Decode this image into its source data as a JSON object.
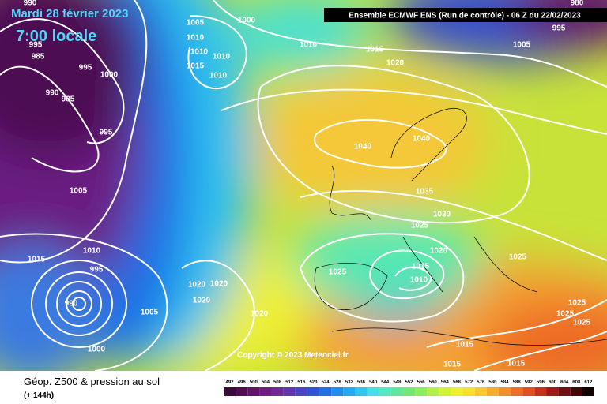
{
  "header": {
    "date": "Mardi 28 février 2023",
    "time": "7:00 locale",
    "run": "Ensemble ECMWF ENS  (Run de contrôle)  - 06 Z du 22/02/2023"
  },
  "copyright": "Copyright © 2023 Meteociel.fr",
  "footer": {
    "title": "Géop. Z500 & pression au sol",
    "lead": "(+ 144h)"
  },
  "colorbar": {
    "ticks": [
      492,
      496,
      500,
      504,
      508,
      512,
      516,
      520,
      524,
      528,
      532,
      536,
      540,
      544,
      548,
      552,
      556,
      560,
      564,
      568,
      572,
      576,
      580,
      584,
      588,
      592,
      596,
      600,
      604,
      608,
      612
    ],
    "colors": [
      "#3a0a3a",
      "#4d0f52",
      "#5e166a",
      "#6a1f82",
      "#6e2a9a",
      "#6236b0",
      "#4b44c4",
      "#2f55d6",
      "#1f70e6",
      "#1f8cf0",
      "#22aaf4",
      "#2fc6f2",
      "#45dde6",
      "#55e8c4",
      "#5ee89c",
      "#72e878",
      "#92ec5a",
      "#b4f048",
      "#d2f23a",
      "#ecf030",
      "#f8e030",
      "#fac832",
      "#f8ac2e",
      "#f4902a",
      "#ee7026",
      "#e25022",
      "#c8301e",
      "#a01818",
      "#701010",
      "#400808",
      "#100000"
    ]
  },
  "isobar_labels": [
    990,
    995,
    985,
    995,
    1000,
    990,
    985,
    995,
    1000,
    1005,
    1010,
    1010,
    1010,
    1015,
    1010,
    1010,
    1015,
    1020,
    1005,
    995,
    980,
    1040,
    1040,
    1005,
    1035,
    1030,
    1025,
    1015,
    1010,
    995,
    990,
    1020,
    1025,
    1015,
    1010,
    1025,
    1020,
    1020,
    1020,
    1005,
    1020,
    1025,
    1025,
    1025,
    1000,
    1015,
    1015,
    1015
  ]
}
